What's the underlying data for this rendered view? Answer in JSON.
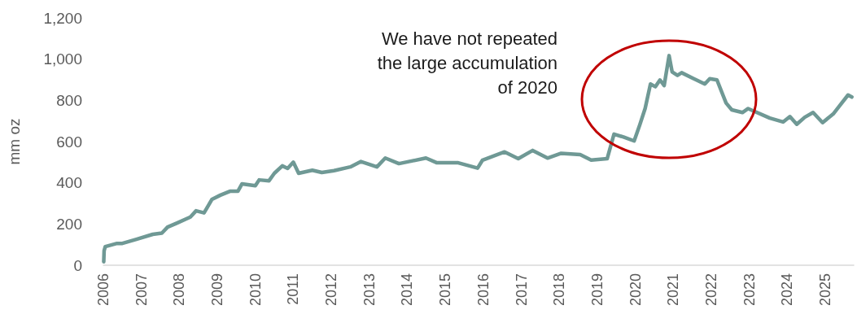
{
  "chart_data": {
    "type": "line",
    "ylabel": "mm oz",
    "annotations": [
      "We have not repeated\nthe large accumulation\nof 2020"
    ],
    "xlim": [
      2006,
      2025.75
    ],
    "xticks": [
      2006,
      2007,
      2008,
      2009,
      2010,
      2011,
      2012,
      2013,
      2014,
      2015,
      2016,
      2017,
      2018,
      2019,
      2020,
      2021,
      2022,
      2023,
      2024,
      2025
    ],
    "ylim": [
      0,
      1200
    ],
    "yticks": [
      0,
      200,
      400,
      600,
      800,
      {
        "value": 1000,
        "label": "1,000"
      },
      {
        "value": 1200,
        "label": "1,200"
      }
    ],
    "grid": false,
    "marker": "none",
    "line_style": "solid",
    "series": [
      {
        "color": "#6f9995",
        "x": [
          2006.01,
          2006.02,
          2006.05,
          2006.36,
          2006.5,
          2006.87,
          2007.3,
          2007.54,
          2007.69,
          2007.94,
          2008.29,
          2008.44,
          2008.65,
          2008.86,
          2009.08,
          2009.33,
          2009.54,
          2009.65,
          2010.0,
          2010.1,
          2010.36,
          2010.5,
          2010.71,
          2010.85,
          2011.0,
          2011.14,
          2011.5,
          2011.75,
          2012.07,
          2012.5,
          2012.78,
          2013.2,
          2013.42,
          2013.78,
          2014.49,
          2014.78,
          2015.34,
          2015.85,
          2015.98,
          2016.56,
          2016.92,
          2017.3,
          2017.69,
          2018.05,
          2018.55,
          2018.84,
          2019.26,
          2019.44,
          2019.69,
          2019.97,
          2020.12,
          2020.26,
          2020.4,
          2020.53,
          2020.65,
          2020.76,
          2020.89,
          2020.97,
          2021.11,
          2021.22,
          2021.54,
          2021.83,
          2021.96,
          2022.15,
          2022.39,
          2022.54,
          2022.82,
          2022.97,
          2023.54,
          2023.89,
          2024.07,
          2024.25,
          2024.46,
          2024.68,
          2024.93,
          2025.21,
          2025.38,
          2025.6,
          2025.7
        ],
        "values": [
          17,
          71,
          90,
          106,
          106,
          126,
          150,
          156,
          185,
          205,
          234,
          264,
          254,
          320,
          340,
          359,
          359,
          395,
          386,
          414,
          410,
          446,
          482,
          470,
          500,
          446,
          461,
          450,
          459,
          477,
          503,
          477,
          520,
          493,
          520,
          497,
          497,
          471,
          510,
          550,
          517,
          557,
          520,
          543,
          537,
          510,
          517,
          636,
          622,
          603,
          682,
          761,
          879,
          866,
          899,
          872,
          1017,
          938,
          921,
          934,
          905,
          879,
          905,
          899,
          787,
          754,
          741,
          760,
          714,
          695,
          721,
          684,
          718,
          741,
          692,
          734,
          774,
          826,
          816
        ]
      }
    ]
  }
}
